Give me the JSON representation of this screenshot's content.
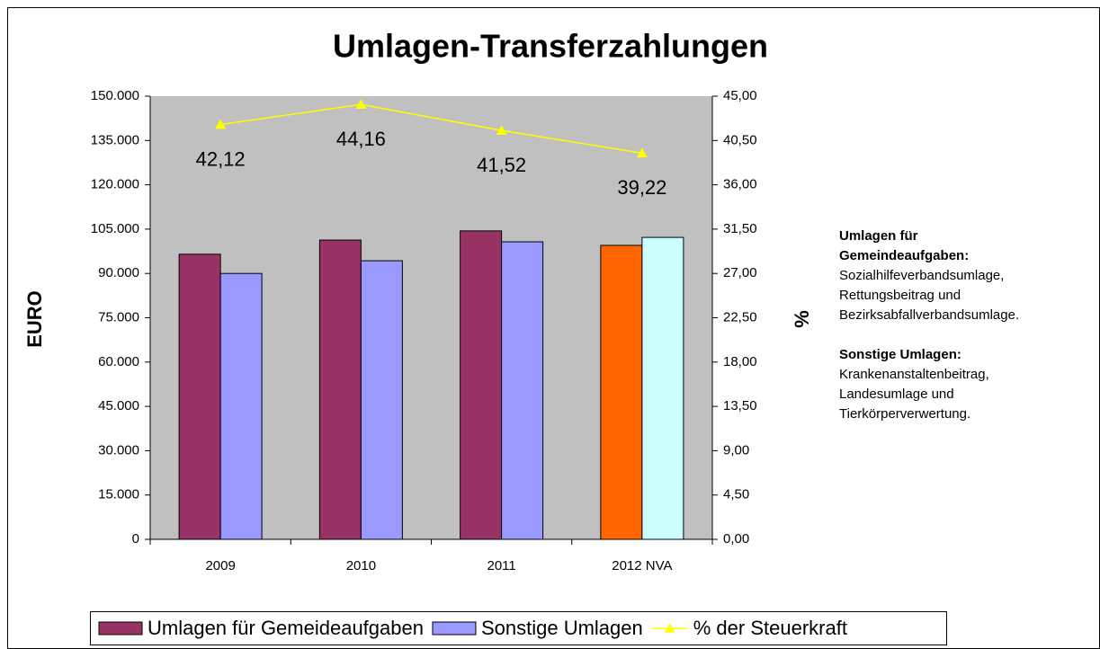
{
  "chart_data": {
    "type": "bar_line",
    "title": "Umlagen-Transferzahlungen",
    "ylabel": "EURO",
    "y2label": "%",
    "categories": [
      "2009",
      "2010",
      "2011",
      "2012 NVA"
    ],
    "series": [
      {
        "name": "Umlagen für Gemeideaufgaben",
        "color": "#993366",
        "colors": [
          "#993366",
          "#993366",
          "#993366",
          "#ff6600"
        ],
        "values": [
          96500,
          101300,
          104400,
          99500
        ]
      },
      {
        "name": "Sonstige Umlagen",
        "color": "#9999ff",
        "colors": [
          "#9999ff",
          "#9999ff",
          "#9999ff",
          "#ccffff"
        ],
        "values": [
          90000,
          94300,
          100700,
          102200
        ]
      },
      {
        "name": "% der Steuerkraft",
        "color": "#ffff00",
        "axis": "y2",
        "type": "line",
        "values": [
          42.12,
          44.16,
          41.52,
          39.22
        ],
        "value_labels": [
          "42,12",
          "44,16",
          "41,52",
          "39,22"
        ]
      }
    ],
    "ylim": [
      0,
      150000
    ],
    "yticks": [
      0,
      {
        "value": 15000,
        "label": "15.000"
      },
      {
        "value": 30000,
        "label": "30.000"
      },
      {
        "value": 45000,
        "label": "45.000"
      },
      {
        "value": 60000,
        "label": "60.000"
      },
      {
        "value": 75000,
        "label": "75.000"
      },
      {
        "value": 90000,
        "label": "90.000"
      },
      {
        "value": 105000,
        "label": "105.000"
      },
      {
        "value": 120000,
        "label": "120.000"
      },
      {
        "value": 135000,
        "label": "135.000"
      },
      {
        "value": 150000,
        "label": "150.000"
      }
    ],
    "y2lim": [
      0,
      45
    ],
    "y2ticks": [
      {
        "value": 0,
        "label": "0,00"
      },
      {
        "value": 4.5,
        "label": "4,50"
      },
      {
        "value": 9,
        "label": "9,00"
      },
      {
        "value": 13.5,
        "label": "13,50"
      },
      {
        "value": 18,
        "label": "18,00"
      },
      {
        "value": 22.5,
        "label": "22,50"
      },
      {
        "value": 27,
        "label": "27,00"
      },
      {
        "value": 31.5,
        "label": "31,50"
      },
      {
        "value": 36,
        "label": "36,00"
      },
      {
        "value": 40.5,
        "label": "40,50"
      },
      {
        "value": 45,
        "label": "45,00"
      }
    ],
    "plot_background": "#c0c0c0",
    "legend": "bottom",
    "annotations": [
      {
        "title": [
          "Umlagen für",
          "Gemeindeaufgaben:"
        ],
        "text": [
          "Sozialhilfeverbandsumlage,",
          "Rettungsbeitrag und",
          "Bezirksabfallverbandsumlage."
        ]
      },
      {
        "title": [
          "Sonstige Umlagen:"
        ],
        "text": [
          "Krankenanstaltenbeitrag,",
          "Landesumlage und",
          "Tierkörperverwertung."
        ]
      }
    ]
  }
}
